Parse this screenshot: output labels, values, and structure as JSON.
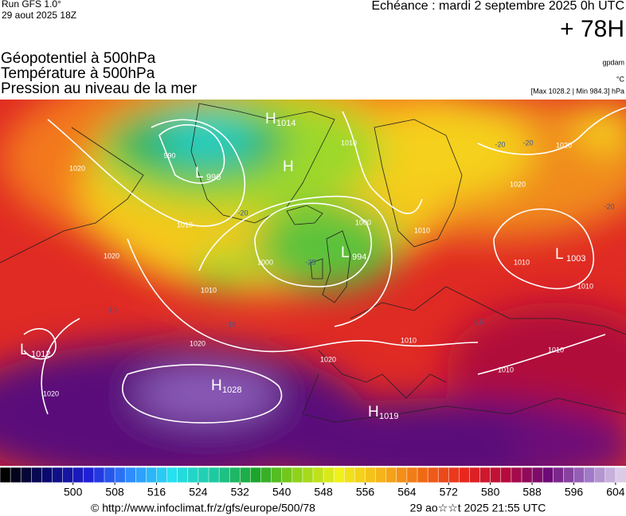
{
  "header": {
    "run": "Run GFS 1.0°",
    "run_date": "29 aout 2025 18Z",
    "valid": "Echéance : mardi 2 septembre 2025 0h UTC",
    "lead": "+ 78H"
  },
  "fields": [
    "Géopotentiel à 500hPa",
    "Température à 500hPa",
    "Pression au niveau de la mer"
  ],
  "units": {
    "geopotential": "gpdam",
    "temperature": "°C",
    "pressure": "[Max 1028.2 | Min 984.3] hPa"
  },
  "pressure_centers": [
    {
      "letter": "H",
      "value": "1014"
    },
    {
      "letter": "H"
    },
    {
      "letter": "L",
      "value": "990"
    },
    {
      "letter": "L",
      "value": "994"
    },
    {
      "letter": "L",
      "value": "1003"
    },
    {
      "letter": "L",
      "value": "1012"
    },
    {
      "letter": "H",
      "value": "1028"
    },
    {
      "letter": "H",
      "value": "1019"
    }
  ],
  "isobar_labels": [
    "1020",
    "1010",
    "1020",
    "1010",
    "1000",
    "1000",
    "1010",
    "1020",
    "1010",
    "1010",
    "1020",
    "1020",
    "1020",
    "1010",
    "1010",
    "1010",
    "990",
    "1020",
    "1010"
  ],
  "temperature_labels": [
    "-20",
    "-20",
    "-20",
    "-20",
    "-25",
    "-15",
    "-10",
    "-15"
  ],
  "colorbar": {
    "range": [
      486,
      606
    ],
    "ticks": [
      500,
      508,
      516,
      524,
      532,
      540,
      548,
      556,
      564,
      572,
      580,
      588,
      596,
      604
    ],
    "step": 2,
    "colors": [
      "#000000",
      "#0a0a6e",
      "#1f1fd6",
      "#2f8cff",
      "#27e0f0",
      "#1fc9a0",
      "#1ba52a",
      "#8fd21a",
      "#f0f01a",
      "#f5b41a",
      "#f06a14",
      "#e8281e",
      "#b40a3c",
      "#6e0a78",
      "#a07ac8",
      "#f0e6f0"
    ]
  },
  "footer": {
    "source": "© http://www.infoclimat.fr/z/gfs/europe/500/78",
    "generated": "29 ao☆☆t 2025 21:55 UTC"
  }
}
